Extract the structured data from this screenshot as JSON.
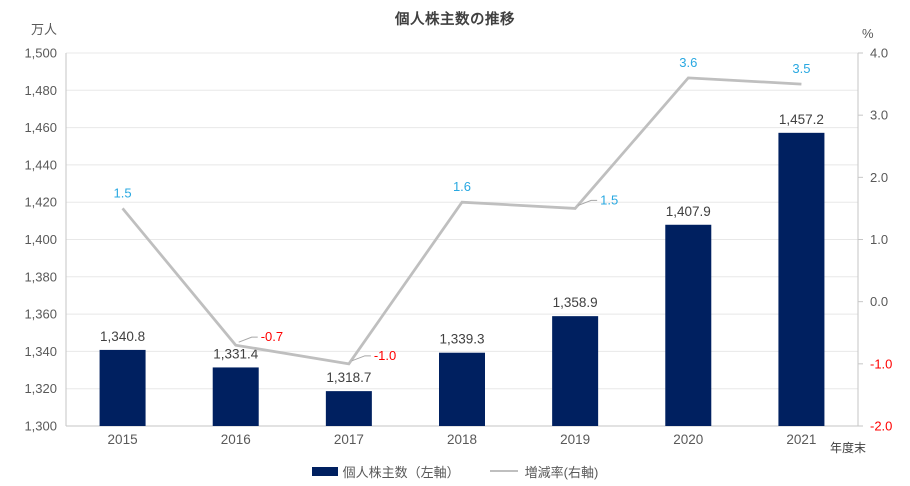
{
  "chart_data": {
    "type": "bar+line",
    "title": "個人株主数の推移",
    "categories": [
      "2015",
      "2016",
      "2017",
      "2018",
      "2019",
      "2020",
      "2021"
    ],
    "series": [
      {
        "name": "個人株主数（左軸）",
        "type": "bar",
        "axis": "left",
        "color": "#002060",
        "values": [
          1340.8,
          1331.4,
          1318.7,
          1339.3,
          1358.9,
          1407.9,
          1457.2
        ],
        "labels": [
          "1,340.8",
          "1,331.4",
          "1,318.7",
          "1,339.3",
          "1,358.9",
          "1,407.9",
          "1,457.2"
        ],
        "label_color": "#404040"
      },
      {
        "name": "増減率(右軸)",
        "type": "line",
        "axis": "right",
        "color": "#BFBFBF",
        "values": [
          1.5,
          -0.7,
          -1.0,
          1.6,
          1.5,
          3.6,
          3.5
        ],
        "labels": [
          "1.5",
          "-0.7",
          "-1.0",
          "1.6",
          "1.5",
          "3.6",
          "3.5"
        ],
        "label_positions": [
          "above",
          "right",
          "right",
          "above",
          "right",
          "above",
          "above"
        ],
        "positive_label_color": "#29A8E1",
        "negative_label_color": "#FF0000"
      }
    ],
    "left_axis": {
      "unit": "万人",
      "min": 1300,
      "max": 1500,
      "step": 20,
      "tick_labels": [
        "1,300",
        "1,320",
        "1,340",
        "1,360",
        "1,380",
        "1,400",
        "1,420",
        "1,440",
        "1,460",
        "1,480",
        "1,500"
      ],
      "tick_color": "#595959"
    },
    "right_axis": {
      "unit": "%",
      "min": -2.0,
      "max": 4.0,
      "step": 1.0,
      "tick_labels": [
        "-2.0",
        "-1.0",
        "0.0",
        "1.0",
        "2.0",
        "3.0",
        "4.0"
      ],
      "tick_color": "#595959",
      "negative_color": "#FF0000"
    },
    "x_axis": {
      "label": "年度末",
      "tick_color": "#595959"
    },
    "grid": "horizontal",
    "legend_position": "bottom"
  }
}
